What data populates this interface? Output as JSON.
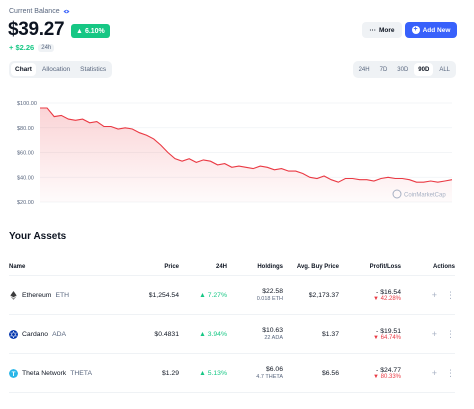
{
  "header": {
    "balance_label": "Current Balance",
    "balance_amount": "$39.27",
    "change_pct": "6.10%",
    "change_amount": "+ $2.26",
    "change_period": "24h",
    "more_label": "More",
    "add_label": "Add New"
  },
  "view_tabs": [
    "Chart",
    "Allocation",
    "Statistics"
  ],
  "range_tabs": [
    "24H",
    "7D",
    "30D",
    "90D",
    "ALL"
  ],
  "active_view": "Chart",
  "active_range": "90D",
  "colors": {
    "up": "#16c784",
    "down": "#ea3943",
    "accent": "#3861fb"
  },
  "chart_data": {
    "type": "area",
    "ylim": [
      20,
      100
    ],
    "yticks": [
      "$100.00",
      "$80.00",
      "$60.00",
      "$40.00",
      "$20.00"
    ],
    "watermark": "CoinMarketCap",
    "values": [
      96,
      96,
      89,
      90,
      87,
      86,
      87,
      84,
      85,
      81,
      81,
      79,
      80,
      79,
      76,
      74,
      71,
      66,
      60,
      55,
      53,
      55,
      52,
      54,
      53,
      50,
      51,
      48,
      49,
      48,
      47,
      49,
      48,
      46,
      47,
      45,
      45,
      43,
      40,
      39,
      41,
      38,
      36,
      39,
      39,
      38,
      38,
      37,
      39,
      40,
      39,
      39,
      38,
      36,
      36,
      37,
      36,
      37,
      38
    ]
  },
  "assets": {
    "title": "Your Assets",
    "columns": [
      "Name",
      "Price",
      "24H",
      "Holdings",
      "Avg. Buy Price",
      "Profit/Loss",
      "Actions"
    ],
    "rows": [
      {
        "name": "Ethereum",
        "ticker": "ETH",
        "icon": "ethereum-icon",
        "price": "$1,254.54",
        "change": "7.27%",
        "holdings_value": "$22.58",
        "holdings_amount": "0.018 ETH",
        "avg_buy": "$2,173.37",
        "pl_value": "- $16.54",
        "pl_pct": "42.28%"
      },
      {
        "name": "Cardano",
        "ticker": "ADA",
        "icon": "cardano-icon",
        "price": "$0.4831",
        "change": "3.94%",
        "holdings_value": "$10.63",
        "holdings_amount": "22 ADA",
        "avg_buy": "$1.37",
        "pl_value": "- $19.51",
        "pl_pct": "64.74%"
      },
      {
        "name": "Theta Network",
        "ticker": "THETA",
        "icon": "theta-icon",
        "price": "$1.29",
        "change": "5.13%",
        "holdings_value": "$6.06",
        "holdings_amount": "4.7 THETA",
        "avg_buy": "$6.56",
        "pl_value": "- $24.77",
        "pl_pct": "80.33%"
      }
    ]
  }
}
